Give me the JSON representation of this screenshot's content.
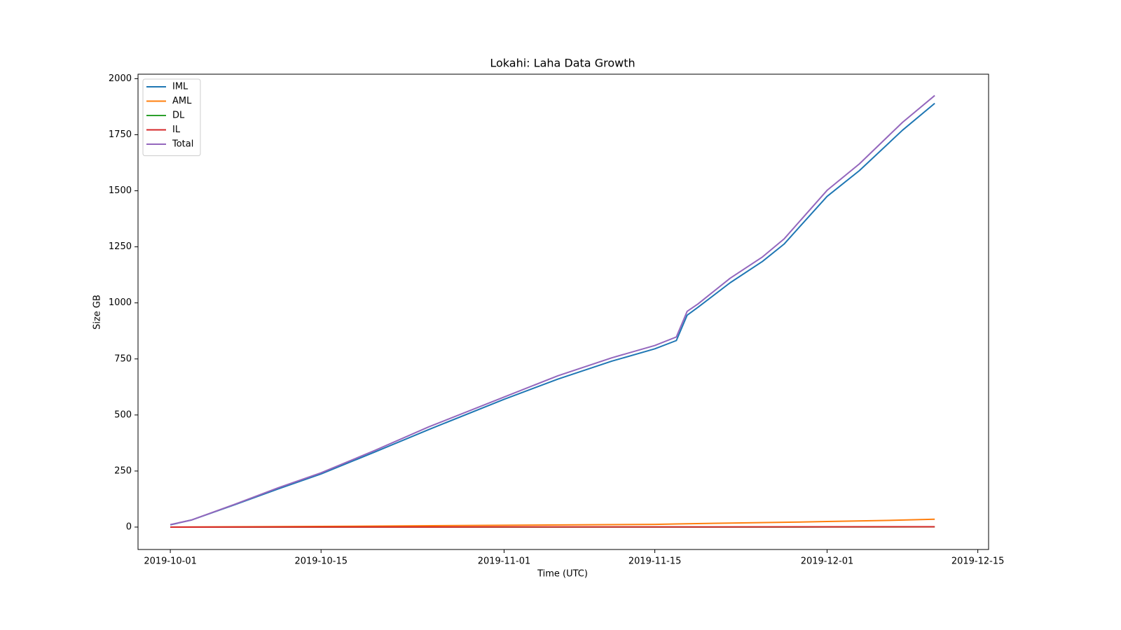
{
  "chart_data": {
    "type": "line",
    "title": "Lokahi: Laha Data Growth",
    "xlabel": "Time (UTC)",
    "ylabel": "Size GB",
    "x_axis_type": "date",
    "xlim": [
      "2019-09-28",
      "2019-12-16"
    ],
    "ylim": [
      -100,
      2020
    ],
    "xticks": [
      "2019-10-01",
      "2019-10-15",
      "2019-11-01",
      "2019-11-15",
      "2019-12-01",
      "2019-12-15"
    ],
    "yticks": [
      0,
      250,
      500,
      750,
      1000,
      1250,
      1500,
      1750,
      2000
    ],
    "grid": false,
    "legend_position": "upper-left",
    "series": [
      {
        "name": "IML",
        "color": "#1f77b4",
        "points": [
          [
            "2019-10-01",
            10
          ],
          [
            "2019-10-03",
            32
          ],
          [
            "2019-10-07",
            100
          ],
          [
            "2019-10-11",
            170
          ],
          [
            "2019-10-15",
            237
          ],
          [
            "2019-10-20",
            335
          ],
          [
            "2019-10-25",
            435
          ],
          [
            "2019-11-01",
            570
          ],
          [
            "2019-11-06",
            660
          ],
          [
            "2019-11-11",
            740
          ],
          [
            "2019-11-15",
            795
          ],
          [
            "2019-11-17",
            832
          ],
          [
            "2019-11-18",
            945
          ],
          [
            "2019-11-19",
            980
          ],
          [
            "2019-11-22",
            1090
          ],
          [
            "2019-11-25",
            1185
          ],
          [
            "2019-11-27",
            1262
          ],
          [
            "2019-12-01",
            1475
          ],
          [
            "2019-12-04",
            1590
          ],
          [
            "2019-12-08",
            1770
          ],
          [
            "2019-12-11",
            1890
          ]
        ]
      },
      {
        "name": "AML",
        "color": "#ff7f0e",
        "points": [
          [
            "2019-10-01",
            0
          ],
          [
            "2019-10-15",
            3
          ],
          [
            "2019-11-01",
            8
          ],
          [
            "2019-11-15",
            12
          ],
          [
            "2019-11-17",
            14
          ],
          [
            "2019-11-22",
            18
          ],
          [
            "2019-11-28",
            22
          ],
          [
            "2019-12-01",
            25
          ],
          [
            "2019-12-06",
            29
          ],
          [
            "2019-12-11",
            35
          ]
        ]
      },
      {
        "name": "DL",
        "color": "#2ca02c",
        "points": [
          [
            "2019-10-01",
            0
          ],
          [
            "2019-11-01",
            0
          ],
          [
            "2019-12-01",
            0.5
          ],
          [
            "2019-12-11",
            1
          ]
        ]
      },
      {
        "name": "IL",
        "color": "#d62728",
        "points": [
          [
            "2019-10-01",
            0
          ],
          [
            "2019-11-01",
            0.5
          ],
          [
            "2019-12-01",
            1
          ],
          [
            "2019-12-11",
            1.5
          ]
        ]
      },
      {
        "name": "Total",
        "color": "#9467bd",
        "points": [
          [
            "2019-10-01",
            11
          ],
          [
            "2019-10-03",
            32
          ],
          [
            "2019-10-07",
            102
          ],
          [
            "2019-10-11",
            175
          ],
          [
            "2019-10-15",
            242
          ],
          [
            "2019-10-20",
            342
          ],
          [
            "2019-10-25",
            447
          ],
          [
            "2019-11-01",
            580
          ],
          [
            "2019-11-06",
            675
          ],
          [
            "2019-11-11",
            755
          ],
          [
            "2019-11-15",
            810
          ],
          [
            "2019-11-17",
            848
          ],
          [
            "2019-11-18",
            962
          ],
          [
            "2019-11-19",
            995
          ],
          [
            "2019-11-22",
            1110
          ],
          [
            "2019-11-25",
            1205
          ],
          [
            "2019-11-27",
            1285
          ],
          [
            "2019-12-01",
            1502
          ],
          [
            "2019-12-04",
            1620
          ],
          [
            "2019-12-08",
            1805
          ],
          [
            "2019-12-11",
            1925
          ]
        ]
      }
    ]
  }
}
